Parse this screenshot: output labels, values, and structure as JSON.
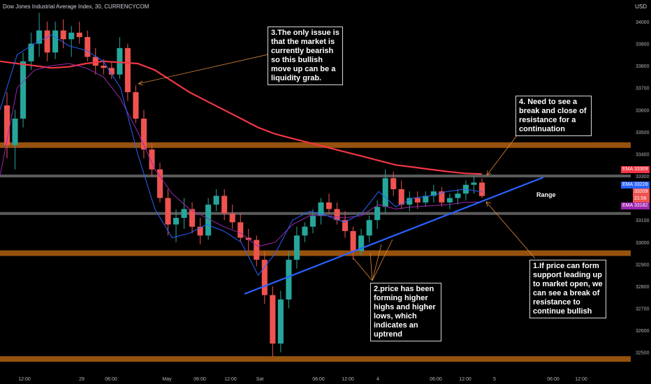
{
  "header": {
    "symbol_title": "Dow Jones Industrial Average Index, 30, CURRENCYCOM",
    "currency": "USD"
  },
  "colors": {
    "background": "#000000",
    "up": "#26a69a",
    "down": "#ef5350",
    "ema_slow": "#f23645",
    "ema_fast": "#2962ff",
    "ema_mid": "#9c27b0",
    "trendline": "#2962ff",
    "zone_orange": "#b06010",
    "zone_gray": "#6b6b6b",
    "arrow": "#e08a3a"
  },
  "annotations": {
    "note1": "1.If price can form support leading up to market open, we can see a break of resistance to continue bullish",
    "note2": "2.price has been forming higher highs and higher lows, which indicates an uptrend",
    "note3": "3.The only issue is that the market is currently bearish so this bullish move up can be a liquidity grab.",
    "note4": "4. Need to see a break and close of resistance for a continuation",
    "range": "Range"
  },
  "price_tags": {
    "ema_slow_label": "EMA",
    "ema_slow_value": "33309",
    "ema_fast_label": "EMA",
    "ema_fast_value": "33228",
    "last_price": "33209",
    "countdown": "21:56",
    "ema_mid_label": "EMA",
    "ema_mid_value": "33182"
  },
  "chart_data": {
    "type": "candlestick",
    "timeframe": "30",
    "x_ticks": [
      "12:00",
      "29",
      "06:00",
      "May",
      "06:00",
      "12:00",
      "Sat",
      "06:00",
      "12:00",
      "4",
      "06:00",
      "12:00",
      "5",
      "06:00",
      "12:00"
    ],
    "y_ticks": [
      32500,
      32600,
      32700,
      32800,
      32900,
      33000,
      33100,
      33200,
      33300,
      33400,
      33500,
      33600,
      33700,
      33800,
      33900,
      34000
    ],
    "ylim": [
      32420,
      34060
    ],
    "horizontal_levels": [
      {
        "price": 33440,
        "kind": "resistance zone"
      },
      {
        "price": 33300,
        "kind": "range top"
      },
      {
        "price": 33130,
        "kind": "range bottom"
      },
      {
        "price": 32950,
        "kind": "support zone"
      },
      {
        "price": 32470,
        "kind": "support zone"
      }
    ],
    "trendline": {
      "from_price": 32770,
      "to_price": 33300
    },
    "ema_slow": [
      33820,
      33810,
      33800,
      33790,
      33795,
      33810,
      33820,
      33815,
      33810,
      33780,
      33730,
      33680,
      33640,
      33600,
      33560,
      33520,
      33490,
      33470,
      33450,
      33430,
      33410,
      33390,
      33370,
      33350,
      33340,
      33330,
      33320,
      33312,
      33309
    ],
    "ema_fast": [
      33600,
      33850,
      33900,
      33940,
      33890,
      33870,
      33820,
      33700,
      33400,
      33150,
      33020,
      33040,
      33080,
      33050,
      33000,
      32850,
      32950,
      33100,
      33140,
      33120,
      33090,
      33130,
      33230,
      33160,
      33200,
      33210,
      33230,
      33240,
      33228
    ],
    "ema_mid": [
      33300,
      33700,
      33780,
      33800,
      33810,
      33790,
      33750,
      33650,
      33500,
      33330,
      33220,
      33150,
      33110,
      33070,
      33040,
      32980,
      33000,
      33080,
      33120,
      33120,
      33110,
      33120,
      33170,
      33150,
      33160,
      33165,
      33170,
      33180,
      33182
    ],
    "ohlc": [
      [
        33620,
        33680,
        33380,
        33440
      ],
      [
        33440,
        33600,
        33330,
        33560
      ],
      [
        33560,
        33860,
        33520,
        33820
      ],
      [
        33820,
        33950,
        33780,
        33900
      ],
      [
        33900,
        34040,
        33840,
        33960
      ],
      [
        33960,
        34000,
        33820,
        33860
      ],
      [
        33860,
        34000,
        33830,
        33960
      ],
      [
        33960,
        34010,
        33880,
        33920
      ],
      [
        33920,
        33980,
        33840,
        33950
      ],
      [
        33950,
        34000,
        33900,
        33930
      ],
      [
        33930,
        33960,
        33820,
        33840
      ],
      [
        33840,
        33880,
        33760,
        33800
      ],
      [
        33800,
        33830,
        33760,
        33790
      ],
      [
        33790,
        33820,
        33740,
        33760
      ],
      [
        33760,
        33930,
        33740,
        33880
      ],
      [
        33880,
        33900,
        33640,
        33680
      ],
      [
        33680,
        33710,
        33540,
        33560
      ],
      [
        33560,
        33600,
        33380,
        33420
      ],
      [
        33420,
        33450,
        33300,
        33330
      ],
      [
        33330,
        33360,
        33180,
        33200
      ],
      [
        33200,
        33240,
        33030,
        33080
      ],
      [
        33080,
        33150,
        33000,
        33110
      ],
      [
        33110,
        33200,
        33060,
        33150
      ],
      [
        33150,
        33180,
        33040,
        33070
      ],
      [
        33070,
        33110,
        32990,
        33030
      ],
      [
        33030,
        33200,
        33010,
        33170
      ],
      [
        33170,
        33240,
        33140,
        33210
      ],
      [
        33210,
        33240,
        33100,
        33130
      ],
      [
        33130,
        33170,
        33060,
        33090
      ],
      [
        33090,
        33130,
        33000,
        33020
      ],
      [
        33020,
        33060,
        32960,
        33010
      ],
      [
        33010,
        33030,
        32890,
        32920
      ],
      [
        32920,
        32960,
        32720,
        32760
      ],
      [
        32760,
        32800,
        32480,
        32540
      ],
      [
        32540,
        32780,
        32500,
        32740
      ],
      [
        32740,
        32960,
        32700,
        32920
      ],
      [
        32920,
        33070,
        32880,
        33030
      ],
      [
        33030,
        33090,
        33000,
        33070
      ],
      [
        33070,
        33150,
        33040,
        33120
      ],
      [
        33120,
        33200,
        33080,
        33180
      ],
      [
        33180,
        33220,
        33130,
        33150
      ],
      [
        33150,
        33180,
        33080,
        33100
      ],
      [
        33100,
        33140,
        33020,
        33050
      ],
      [
        33050,
        33070,
        32920,
        32960
      ],
      [
        32960,
        33060,
        32940,
        33030
      ],
      [
        33030,
        33120,
        33000,
        33100
      ],
      [
        33100,
        33190,
        33060,
        33160
      ],
      [
        33160,
        33330,
        33130,
        33290
      ],
      [
        33290,
        33320,
        33210,
        33240
      ],
      [
        33240,
        33280,
        33150,
        33170
      ],
      [
        33170,
        33230,
        33140,
        33200
      ],
      [
        33200,
        33230,
        33150,
        33180
      ],
      [
        33180,
        33230,
        33160,
        33210
      ],
      [
        33210,
        33260,
        33180,
        33230
      ],
      [
        33230,
        33250,
        33160,
        33180
      ],
      [
        33180,
        33220,
        33150,
        33200
      ],
      [
        33200,
        33240,
        33170,
        33220
      ],
      [
        33220,
        33280,
        33190,
        33260
      ],
      [
        33260,
        33300,
        33220,
        33270
      ],
      [
        33270,
        33290,
        33200,
        33209
      ]
    ]
  }
}
